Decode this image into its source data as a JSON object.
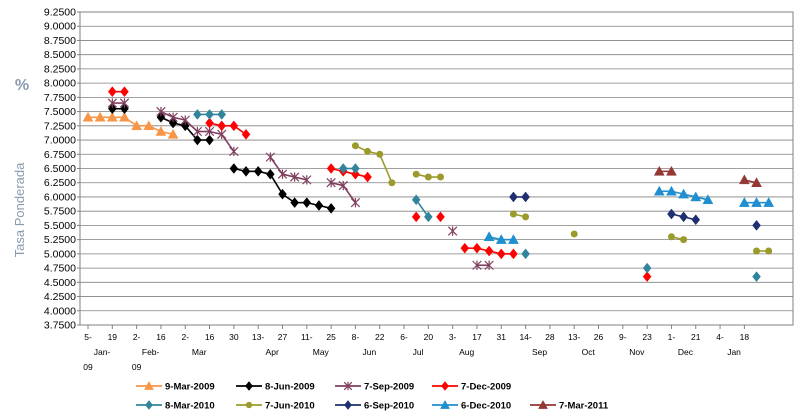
{
  "chart_data": {
    "type": "line",
    "ylabel_unit": "%",
    "ylabel": "Tasa Ponderada",
    "ylim": [
      3.75,
      9.25
    ],
    "yticks": [
      "3.7500",
      "4.0000",
      "4.2500",
      "4.5000",
      "4.7500",
      "5.0000",
      "5.2500",
      "5.5000",
      "5.7500",
      "6.0000",
      "6.2500",
      "6.5000",
      "6.7500",
      "7.0000",
      "7.2500",
      "7.5000",
      "7.7500",
      "8.0000",
      "8.2500",
      "8.5000",
      "8.7500",
      "9.0000",
      "9.2500"
    ],
    "xlim": [
      0,
      29
    ],
    "xticks": [
      {
        "label": "5-",
        "label2": "Jan-",
        "label3": "09"
      },
      {
        "label": "19",
        "label2": "",
        "label3": ""
      },
      {
        "label": "2-",
        "label2": "Feb-",
        "label3": "09"
      },
      {
        "label": "16",
        "label2": "",
        "label3": ""
      },
      {
        "label": "2-",
        "label2": "Mar",
        "label3": ""
      },
      {
        "label": "16",
        "label2": "",
        "label3": ""
      },
      {
        "label": "30",
        "label2": "",
        "label3": ""
      },
      {
        "label": "13-",
        "label2": "Apr",
        "label3": ""
      },
      {
        "label": "27",
        "label2": "",
        "label3": ""
      },
      {
        "label": "11-",
        "label2": "May",
        "label3": ""
      },
      {
        "label": "25",
        "label2": "",
        "label3": ""
      },
      {
        "label": "8-",
        "label2": "Jun",
        "label3": ""
      },
      {
        "label": "22",
        "label2": "",
        "label3": ""
      },
      {
        "label": "6-",
        "label2": "Jul",
        "label3": ""
      },
      {
        "label": "20",
        "label2": "",
        "label3": ""
      },
      {
        "label": "3-",
        "label2": "Aug",
        "label3": ""
      },
      {
        "label": "17",
        "label2": "",
        "label3": ""
      },
      {
        "label": "31",
        "label2": "",
        "label3": ""
      },
      {
        "label": "14-",
        "label2": "Sep",
        "label3": ""
      },
      {
        "label": "28",
        "label2": "",
        "label3": ""
      },
      {
        "label": "13-",
        "label2": "Oct",
        "label3": ""
      },
      {
        "label": "26",
        "label2": "",
        "label3": ""
      },
      {
        "label": "9-",
        "label2": "Nov",
        "label3": ""
      },
      {
        "label": "23",
        "label2": "",
        "label3": ""
      },
      {
        "label": "1-",
        "label2": "Dec",
        "label3": ""
      },
      {
        "label": "21",
        "label2": "",
        "label3": ""
      },
      {
        "label": "4-",
        "label2": "Jan",
        "label3": ""
      },
      {
        "label": "18",
        "label2": "",
        "label3": ""
      }
    ],
    "grid": "horizontal",
    "legend_position": "bottom",
    "series": [
      {
        "name": "9-Mar-2009",
        "color": "#f79646",
        "marker": "triangle",
        "points": [
          [
            0,
            7.4
          ],
          [
            0.5,
            7.4
          ],
          [
            1,
            7.4
          ],
          [
            1.5,
            7.4
          ],
          [
            2,
            7.25
          ],
          [
            2.5,
            7.25
          ],
          [
            3,
            7.15
          ],
          [
            3.5,
            7.1
          ]
        ]
      },
      {
        "name": "8-Jun-2009",
        "color": "#000000",
        "marker": "diamond",
        "points": [
          [
            1,
            7.55
          ],
          [
            1.5,
            7.55
          ],
          [
            3,
            7.4
          ],
          [
            3.5,
            7.3
          ],
          [
            4,
            7.25
          ],
          [
            4.5,
            7.0
          ],
          [
            5,
            7.0
          ],
          [
            6,
            6.5
          ],
          [
            6.5,
            6.45
          ],
          [
            7,
            6.45
          ],
          [
            7.5,
            6.4
          ],
          [
            8,
            6.05
          ],
          [
            8.5,
            5.9
          ],
          [
            9,
            5.9
          ],
          [
            9.5,
            5.85
          ],
          [
            10,
            5.8
          ]
        ]
      },
      {
        "name": "7-Sep-2009",
        "color": "#7f3f5f",
        "marker": "star",
        "points": [
          [
            1,
            7.65
          ],
          [
            1.5,
            7.65
          ],
          [
            3,
            7.5
          ],
          [
            3.5,
            7.4
          ],
          [
            4,
            7.35
          ],
          [
            4.5,
            7.15
          ],
          [
            5,
            7.15
          ],
          [
            5.5,
            7.1
          ],
          [
            6,
            6.8
          ],
          [
            7.5,
            6.7
          ],
          [
            8,
            6.4
          ],
          [
            8.5,
            6.35
          ],
          [
            9,
            6.3
          ],
          [
            10,
            6.25
          ],
          [
            10.5,
            6.2
          ],
          [
            11,
            5.9
          ],
          [
            15,
            5.4
          ],
          [
            16,
            4.8
          ],
          [
            16.5,
            4.8
          ]
        ]
      },
      {
        "name": "7-Dec-2009",
        "color": "#ff0000",
        "marker": "diamond",
        "points": [
          [
            1,
            7.85
          ],
          [
            1.5,
            7.85
          ],
          [
            5,
            7.3
          ],
          [
            5.5,
            7.25
          ],
          [
            6,
            7.25
          ],
          [
            6.5,
            7.1
          ],
          [
            10,
            6.5
          ],
          [
            10.5,
            6.45
          ],
          [
            11,
            6.4
          ],
          [
            11.5,
            6.35
          ],
          [
            13.5,
            5.65
          ],
          [
            14.5,
            5.65
          ],
          [
            15.5,
            5.1
          ],
          [
            16,
            5.1
          ],
          [
            16.5,
            5.05
          ],
          [
            17,
            5.0
          ],
          [
            17.5,
            5.0
          ],
          [
            23,
            4.6
          ]
        ]
      },
      {
        "name": "8-Mar-2010",
        "color": "#31849b",
        "marker": "diamond",
        "points": [
          [
            4.5,
            7.45
          ],
          [
            5,
            7.45
          ],
          [
            5.5,
            7.45
          ],
          [
            10.5,
            6.5
          ],
          [
            11,
            6.5
          ],
          [
            13.5,
            5.95
          ],
          [
            14,
            5.65
          ],
          [
            18,
            5.0
          ],
          [
            23,
            4.75
          ],
          [
            27.5,
            4.6
          ]
        ]
      },
      {
        "name": "7-Jun-2010",
        "color": "#9b9b2b",
        "marker": "circle",
        "points": [
          [
            11,
            6.9
          ],
          [
            11.5,
            6.8
          ],
          [
            12,
            6.75
          ],
          [
            12.5,
            6.25
          ],
          [
            13.5,
            6.4
          ],
          [
            14,
            6.35
          ],
          [
            14.5,
            6.35
          ],
          [
            17.5,
            5.7
          ],
          [
            18,
            5.65
          ],
          [
            20,
            5.35
          ],
          [
            24,
            5.3
          ],
          [
            24.5,
            5.25
          ],
          [
            27.5,
            5.05
          ],
          [
            28,
            5.05
          ]
        ]
      },
      {
        "name": "6-Sep-2010",
        "color": "#1f2f6f",
        "marker": "diamond",
        "points": [
          [
            17.5,
            6.0
          ],
          [
            18,
            6.0
          ],
          [
            24,
            5.7
          ],
          [
            24.5,
            5.65
          ],
          [
            25,
            5.6
          ],
          [
            27.5,
            5.5
          ]
        ]
      },
      {
        "name": "6-Dec-2010",
        "color": "#1f8fcf",
        "marker": "triangle",
        "points": [
          [
            16.5,
            5.3
          ],
          [
            17,
            5.25
          ],
          [
            17.5,
            5.25
          ],
          [
            23.5,
            6.1
          ],
          [
            24,
            6.1
          ],
          [
            24.5,
            6.05
          ],
          [
            25,
            6.0
          ],
          [
            25.5,
            5.95
          ],
          [
            27,
            5.9
          ],
          [
            27.5,
            5.9
          ],
          [
            28,
            5.9
          ]
        ]
      },
      {
        "name": "7-Mar-2011",
        "color": "#953735",
        "marker": "triangle",
        "points": [
          [
            23.5,
            6.45
          ],
          [
            24,
            6.45
          ],
          [
            27,
            6.3
          ],
          [
            27.5,
            6.25
          ]
        ]
      }
    ]
  }
}
